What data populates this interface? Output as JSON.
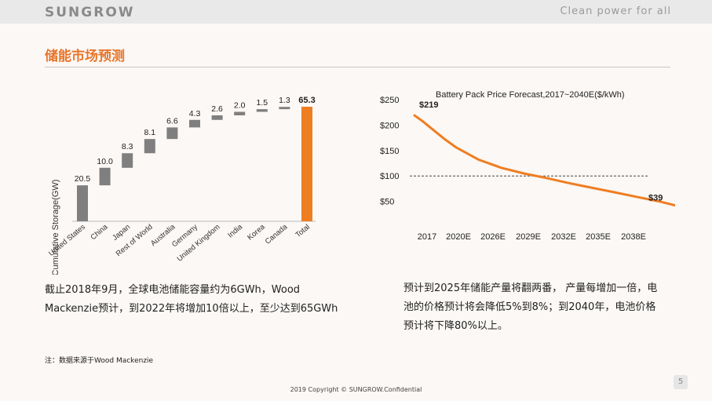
{
  "header": {
    "logo": "SUNGROW",
    "tagline": "Clean power for all"
  },
  "title": "储能市场预测",
  "chart_data": [
    {
      "type": "bar",
      "subtype": "waterfall",
      "ylabel": "Cumulative Storage(GW)",
      "categories": [
        "United States",
        "China",
        "Japan",
        "Rest of World",
        "Australia",
        "Germany",
        "United Kingdom",
        "India",
        "Korea",
        "Canada",
        "Total"
      ],
      "values": [
        20.5,
        10.0,
        8.3,
        8.1,
        6.6,
        4.3,
        2.6,
        2.0,
        1.5,
        1.3,
        65.3
      ],
      "value_labels": [
        "20.5",
        "10.0",
        "8.3",
        "8.1",
        "6.6",
        "4.3",
        "2.6",
        "2.0",
        "1.5",
        "1.3",
        "65.3"
      ],
      "colors": {
        "bar": "#7f7f7f",
        "total": "#ef7d22"
      }
    },
    {
      "type": "line",
      "title": "Battery Pack Price Forecast,2017~2040E($/kWh)",
      "x_ticks": [
        "2017",
        "2020E",
        "2026E",
        "2029E",
        "2032E",
        "2035E",
        "2038E"
      ],
      "y_ticks": [
        "$250",
        "$200",
        "$150",
        "$100",
        "$50"
      ],
      "ylim": [
        0,
        250
      ],
      "x": [
        2016.3,
        2017,
        2018,
        2019,
        2020,
        2022,
        2024,
        2026,
        2028,
        2030,
        2032,
        2034,
        2036,
        2038,
        2040
      ],
      "y": [
        219,
        208,
        190,
        172,
        156,
        132,
        116,
        105,
        96,
        86,
        77,
        68,
        59,
        50,
        39
      ],
      "reference_line": 100,
      "annotations": [
        "$219",
        "$39"
      ],
      "colors": {
        "line": "#ef7d22"
      }
    }
  ],
  "left_text": [
    "截止2018年9月，全球电池储能容量约为6GWh，Wood",
    "Mackenzie预计，到2022年将增加10倍以上，至少达到65GWh"
  ],
  "right_text": [
    "预计到2025年储能产量将翻两番， 产量每增加一倍，电",
    "池的价格预计将会降低5%到8%；到2040年，电池价格",
    "预计将下降80%以上。"
  ],
  "note": "注：数据来源于Wood Mackenzie",
  "footer": {
    "copyright": "2019 Copyright © SUNGROW.Confidential",
    "page": "5"
  }
}
